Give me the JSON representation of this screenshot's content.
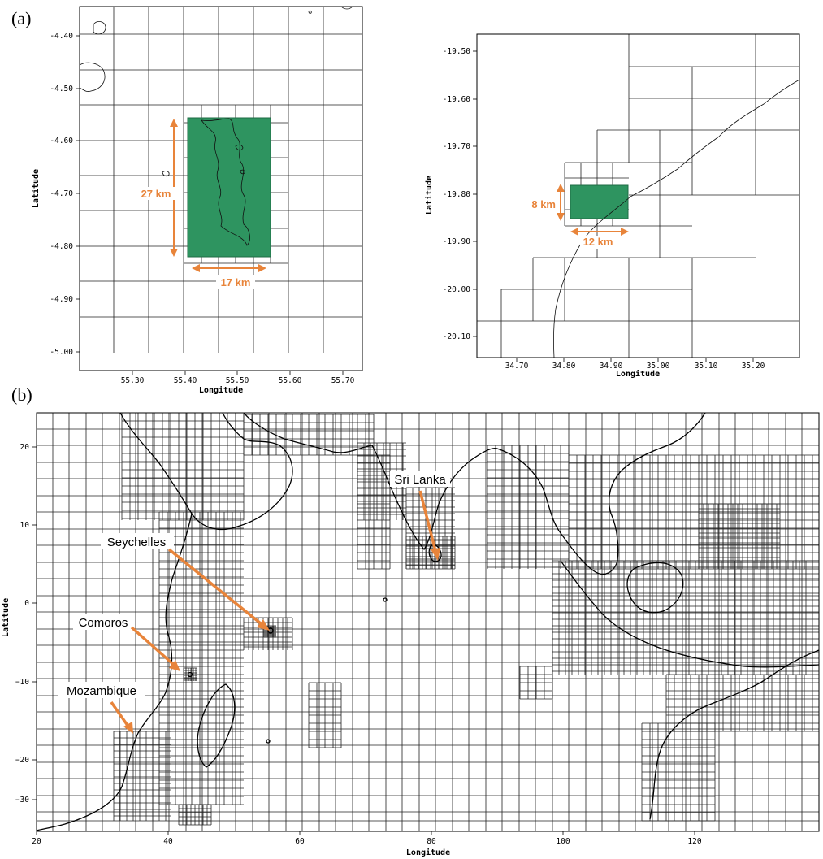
{
  "panel_a_label": "(a)",
  "panel_b_label": "(b)",
  "left_map": {
    "xlabel": "Longitude",
    "ylabel": "Latitude",
    "x_ticks": [
      "55.30",
      "55.40",
      "55.50",
      "55.60",
      "55.70"
    ],
    "y_ticks": [
      "-4.40",
      "-4.50",
      "-4.60",
      "-4.70",
      "-4.80",
      "-4.90",
      "-5.00"
    ],
    "highlight_color": "#2e9460",
    "dim_height": "27 km",
    "dim_width": "17 km"
  },
  "right_map": {
    "xlabel": "Longitude",
    "ylabel": "Latitude",
    "x_ticks": [
      "34.70",
      "34.80",
      "34.90",
      "35.00",
      "35.10",
      "35.20"
    ],
    "y_ticks": [
      "-19.50",
      "-19.60",
      "-19.70",
      "-19.80",
      "-19.90",
      "-20.00",
      "-20.10"
    ],
    "highlight_color": "#2e9460",
    "dim_height": "8 km",
    "dim_width": "12 km"
  },
  "overview_map": {
    "xlabel": "Longitude",
    "ylabel": "Latitude",
    "x_ticks": [
      "20",
      "40",
      "60",
      "80",
      "100",
      "120"
    ],
    "y_ticks": [
      "20",
      "10",
      "0",
      "−10",
      "−20",
      "−30"
    ],
    "annotations": {
      "sri_lanka": "Sri Lanka",
      "seychelles": "Seychelles",
      "comoros": "Comoros",
      "mozambique": "Mozambique"
    },
    "arrow_color": "#e8843a"
  }
}
